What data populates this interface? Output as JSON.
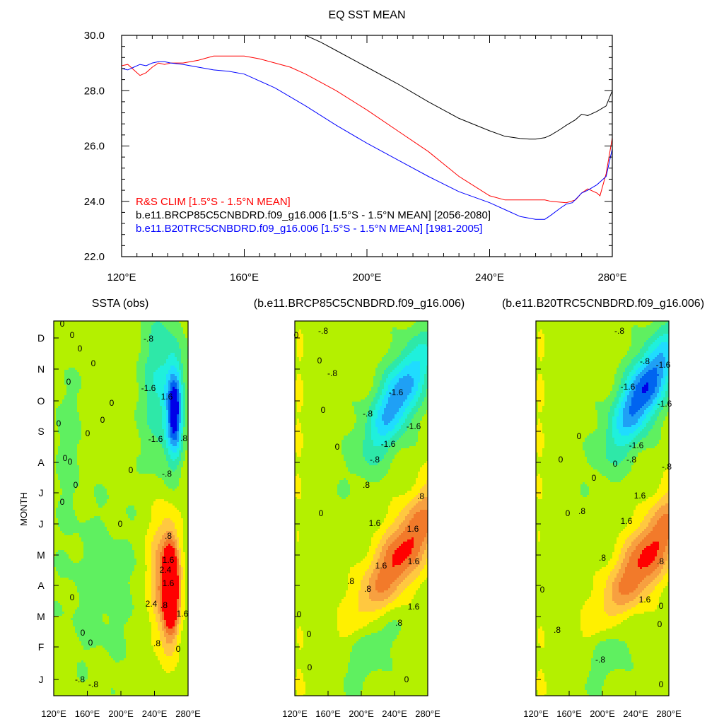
{
  "chart_data": [
    {
      "type": "line",
      "title": "EQ SST MEAN",
      "xlabel": "",
      "ylabel": "",
      "xlim": [
        120,
        280
      ],
      "ylim": [
        22,
        30
      ],
      "x_ticks": [
        120,
        160,
        200,
        240,
        280
      ],
      "x_tick_labels": [
        "120°E",
        "160°E",
        "200°E",
        "240°E",
        "280°E"
      ],
      "y_ticks": [
        22,
        24,
        26,
        28,
        30
      ],
      "y_tick_labels": [
        "22.0",
        "24.0",
        "26.0",
        "28.0",
        "30.0"
      ],
      "legend": "bottom-left (inside)",
      "series": [
        {
          "name": "R&S CLIM [1.5°S - 1.5°N MEAN]",
          "color": "#ff0000",
          "x": [
            120,
            122,
            124,
            126,
            128,
            130,
            132,
            134,
            136,
            140,
            145,
            150,
            155,
            160,
            165,
            170,
            175,
            180,
            190,
            200,
            210,
            220,
            230,
            240,
            245,
            250,
            255,
            258,
            260,
            265,
            268,
            270,
            272,
            275,
            276,
            278,
            280
          ],
          "y": [
            28.9,
            28.95,
            28.75,
            28.55,
            28.65,
            28.85,
            29.0,
            28.95,
            29.0,
            29.0,
            29.1,
            29.25,
            29.25,
            29.25,
            29.15,
            29.0,
            28.85,
            28.6,
            28.0,
            27.3,
            26.55,
            25.8,
            24.9,
            24.2,
            24.05,
            24.05,
            24.05,
            24.05,
            24.0,
            23.95,
            24.05,
            24.3,
            24.45,
            24.3,
            24.2,
            25.0,
            26.3
          ]
        },
        {
          "name": "b.e11.BRCP85C5CNBDRD.f09_g16.006 [1.5°S - 1.5°N MEAN] [2056-2080]",
          "color": "#000000",
          "x": [
            180,
            185,
            190,
            200,
            210,
            220,
            230,
            240,
            245,
            250,
            253,
            255,
            258,
            260,
            263,
            265,
            268,
            270,
            272,
            275,
            278,
            280
          ],
          "y": [
            30.0,
            29.75,
            29.45,
            28.85,
            28.25,
            27.6,
            27.0,
            26.55,
            26.35,
            26.27,
            26.25,
            26.25,
            26.3,
            26.4,
            26.6,
            26.75,
            26.95,
            27.15,
            27.1,
            27.25,
            27.45,
            28.0
          ]
        },
        {
          "name": "b.e11.B20TRC5CNBDRD.f09_g16.006 [1.5°S - 1.5°N MEAN] [1981-2005]",
          "color": "#0000ff",
          "x": [
            120,
            122,
            124,
            126,
            128,
            130,
            132,
            134,
            136,
            140,
            145,
            150,
            155,
            160,
            170,
            180,
            190,
            200,
            210,
            220,
            230,
            240,
            245,
            250,
            255,
            258,
            260,
            263,
            265,
            267,
            270,
            272,
            275,
            278,
            280
          ],
          "y": [
            28.8,
            28.75,
            28.85,
            28.95,
            28.9,
            29.0,
            29.05,
            29.05,
            29.0,
            28.95,
            28.85,
            28.75,
            28.7,
            28.6,
            28.1,
            27.45,
            26.75,
            26.1,
            25.5,
            24.9,
            24.35,
            23.95,
            23.7,
            23.45,
            23.35,
            23.35,
            23.5,
            23.75,
            23.9,
            23.95,
            24.3,
            24.4,
            24.6,
            24.9,
            25.9
          ]
        }
      ]
    },
    {
      "type": "heatmap",
      "title": "SSTA (obs)",
      "xlabel": "",
      "ylabel": "MONTH",
      "xlim": [
        120,
        280
      ],
      "x_tick_labels": [
        "120°E",
        "160°E",
        "200°E",
        "240°E",
        "280°E"
      ],
      "y_tick_labels": [
        "J",
        "F",
        "M",
        "A",
        "M",
        "J",
        "J",
        "A",
        "S",
        "O",
        "N",
        "D"
      ],
      "contour_labels": [
        "0",
        "0",
        "0",
        "0",
        "0",
        "0",
        "0",
        "0",
        "0",
        "0",
        "0",
        "0",
        "0",
        "0",
        "0",
        "0",
        "0",
        "0",
        "-.8",
        "-.8",
        "-.8",
        "-1.6",
        "-1.6",
        "-.8",
        ".8",
        "1.6",
        "2.4",
        "1.6",
        "1.6",
        "2.4",
        ".8",
        "1.6",
        ".8",
        "0",
        ".8"
      ],
      "centers": [
        {
          "lon": 264,
          "month": 8.6,
          "value": -2.3
        },
        {
          "lon": 260,
          "month": 2.9,
          "value": 3.1
        }
      ]
    },
    {
      "type": "heatmap",
      "title": "(b.e11.BRCP85C5CNBDRD.f09_g16.006)",
      "xlim": [
        120,
        280
      ],
      "x_tick_labels": [
        "120°E",
        "160°E",
        "200°E",
        "240°E",
        "280°E"
      ],
      "contour_labels": [
        "0",
        "0",
        "0",
        "0",
        "0",
        "0",
        "0",
        "-.8",
        "-.8",
        "-1.6",
        "-1.6",
        "-1.6",
        "-.8",
        "-.8",
        ".8",
        ".8",
        ".8",
        "1.6",
        "1.6",
        "1.6",
        "1.6",
        "1.6",
        ".8",
        ".8",
        "0",
        "0"
      ],
      "centers": [
        {
          "lon": 245,
          "month": 9.1,
          "value": -2.1
        },
        {
          "lon": 250,
          "month": 4.1,
          "value": 2.0
        }
      ]
    },
    {
      "type": "heatmap",
      "title": "(b.e11.B20TRC5CNBDRD.f09_g16.006)",
      "xlim": [
        120,
        280
      ],
      "x_tick_labels": [
        "120°E",
        "160°E",
        "200°E",
        "240°E",
        "280°E"
      ],
      "contour_labels": [
        "-.8",
        "-.8",
        "-1.6",
        "-1.6",
        "-1.6",
        "-1.6",
        "-.8",
        "-.8",
        "0",
        "0",
        "0",
        "0",
        "0",
        "0",
        ".8",
        ".8",
        ".8",
        "1.6",
        "1.6",
        "1.6",
        ".8",
        "-.8",
        "0",
        "0",
        "0"
      ],
      "centers": [
        {
          "lon": 250,
          "month": 9.3,
          "value": -2.6
        },
        {
          "lon": 252,
          "month": 3.9,
          "value": 2.0
        }
      ]
    }
  ],
  "legend_entries": [
    {
      "text": "R&S CLIM [1.5°S - 1.5°N MEAN]",
      "color": "#ff0000"
    },
    {
      "text": "b.e11.BRCP85C5CNBDRD.f09_g16.006 [1.5°S - 1.5°N MEAN] [2056-2080]",
      "color": "#000000"
    },
    {
      "text": "b.e11.B20TRC5CNBDRD.f09_g16.006 [1.5°S - 1.5°N MEAN] [1981-2005]",
      "color": "#0000ff"
    }
  ],
  "colors": {
    "contour_palette": [
      "#0000e8",
      "#0064f0",
      "#1fa0f5",
      "#1fdcff",
      "#1ff0dc",
      "#2ee8a8",
      "#5ff060",
      "#b4f000",
      "#fff000",
      "#ffc840",
      "#f7a040",
      "#f27a2a",
      "#ff0000"
    ]
  }
}
